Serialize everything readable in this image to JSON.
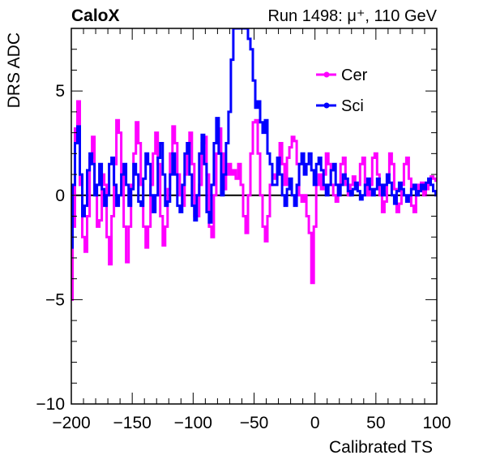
{
  "chart_data": {
    "type": "line",
    "header_left": "CaloX",
    "header_right": "Run 1498:   μ⁺, 110 GeV",
    "xlabel": "Calibrated TS",
    "ylabel": "DRS ADC",
    "xlim": [
      -200,
      100
    ],
    "ylim": [
      -10,
      8
    ],
    "xticks": [
      -200,
      -150,
      -100,
      -50,
      0,
      50,
      100
    ],
    "xtick_labels": [
      "−200",
      "−150",
      "−100",
      "−50",
      "0",
      "50",
      "100"
    ],
    "yticks": [
      -10,
      -5,
      0,
      5
    ],
    "ytick_labels": [
      "−10",
      "−5",
      "0",
      "5"
    ],
    "zero_line": true,
    "legend_position": "top-right",
    "series": [
      {
        "name": "Cer",
        "color": "#ff00ff",
        "points": [
          [
            -200,
            -5.0
          ],
          [
            -198,
            -1.5
          ],
          [
            -196,
            3.2
          ],
          [
            -194,
            4.5
          ],
          [
            -192,
            0.5
          ],
          [
            -190,
            -2.0
          ],
          [
            -188,
            -2.7
          ],
          [
            -186,
            -1.0
          ],
          [
            -184,
            1.8
          ],
          [
            -182,
            2.8
          ],
          [
            -180,
            0.3
          ],
          [
            -178,
            -1.5
          ],
          [
            -176,
            -1.2
          ],
          [
            -174,
            1.0
          ],
          [
            -172,
            0.5
          ],
          [
            -170,
            -2.0
          ],
          [
            -168,
            -3.3
          ],
          [
            -166,
            -1.0
          ],
          [
            -164,
            1.5
          ],
          [
            -162,
            3.6
          ],
          [
            -160,
            3.0
          ],
          [
            -158,
            1.0
          ],
          [
            -156,
            -1.5
          ],
          [
            -154,
            -3.2
          ],
          [
            -152,
            -1.5
          ],
          [
            -150,
            0.5
          ],
          [
            -148,
            2.0
          ],
          [
            -146,
            3.5
          ],
          [
            -144,
            2.5
          ],
          [
            -142,
            0.5
          ],
          [
            -140,
            -1.5
          ],
          [
            -138,
            -2.5
          ],
          [
            -136,
            -1.5
          ],
          [
            -134,
            0.5
          ],
          [
            -132,
            2.0
          ],
          [
            -130,
            3.0
          ],
          [
            -128,
            1.5
          ],
          [
            -126,
            -1.0
          ],
          [
            -124,
            -2.4
          ],
          [
            -122,
            -1.5
          ],
          [
            -120,
            0.3
          ],
          [
            -118,
            2.0
          ],
          [
            -116,
            3.3
          ],
          [
            -114,
            2.5
          ],
          [
            -112,
            1.0
          ],
          [
            -110,
            0.0
          ],
          [
            -108,
            -0.5
          ],
          [
            -106,
            1.0
          ],
          [
            -104,
            2.5
          ],
          [
            -102,
            3.0
          ],
          [
            -100,
            1.5
          ],
          [
            -98,
            -1.0
          ],
          [
            -96,
            -1.0
          ],
          [
            -94,
            0.5
          ],
          [
            -92,
            2.5
          ],
          [
            -90,
            2.8
          ],
          [
            -88,
            1.0
          ],
          [
            -86,
            -1.5
          ],
          [
            -84,
            -2.0
          ],
          [
            -82,
            0.0
          ],
          [
            -80,
            2.0
          ],
          [
            -78,
            3.2
          ],
          [
            -76,
            2.0
          ],
          [
            -74,
            0.3
          ],
          [
            -72,
            1.0
          ],
          [
            -70,
            1.5
          ],
          [
            -68,
            1.0
          ],
          [
            -66,
            1.2
          ],
          [
            -64,
            0.8
          ],
          [
            -62,
            1.5
          ],
          [
            -60,
            0.5
          ],
          [
            -58,
            -1.0
          ],
          [
            -56,
            -1.8
          ],
          [
            -54,
            0.0
          ],
          [
            -52,
            2.0
          ],
          [
            -50,
            3.5
          ],
          [
            -48,
            3.6
          ],
          [
            -46,
            2.0
          ],
          [
            -44,
            0.0
          ],
          [
            -42,
            -1.5
          ],
          [
            -40,
            -2.2
          ],
          [
            -38,
            -1.0
          ],
          [
            -36,
            0.5
          ],
          [
            -34,
            1.0
          ],
          [
            -32,
            0.8
          ],
          [
            -30,
            1.5
          ],
          [
            -28,
            2.5
          ],
          [
            -26,
            1.5
          ],
          [
            -24,
            0.5
          ],
          [
            -22,
            1.8
          ],
          [
            -20,
            2.3
          ],
          [
            -18,
            2.8
          ],
          [
            -16,
            2.6
          ],
          [
            -14,
            1.5
          ],
          [
            -12,
            0.0
          ],
          [
            -10,
            -0.3
          ],
          [
            -8,
            0.0
          ],
          [
            -6,
            -1.0
          ],
          [
            -4,
            -1.8
          ],
          [
            -2,
            -4.2
          ],
          [
            0,
            -1.5
          ],
          [
            2,
            0.5
          ],
          [
            4,
            1.0
          ],
          [
            6,
            0.3
          ],
          [
            8,
            1.0
          ],
          [
            10,
            2.0
          ],
          [
            12,
            1.5
          ],
          [
            14,
            0.5
          ],
          [
            16,
            0.0
          ],
          [
            18,
            -0.3
          ],
          [
            20,
            0.5
          ],
          [
            22,
            1.5
          ],
          [
            24,
            1.8
          ],
          [
            26,
            0.5
          ],
          [
            28,
            0.0
          ],
          [
            30,
            0.5
          ],
          [
            32,
            0.9
          ],
          [
            34,
            0.3
          ],
          [
            36,
            0.5
          ],
          [
            38,
            1.5
          ],
          [
            40,
            1.8
          ],
          [
            42,
            0.5
          ],
          [
            44,
            0.0
          ],
          [
            46,
            0.5
          ],
          [
            48,
            1.8
          ],
          [
            50,
            2.0
          ],
          [
            52,
            1.0
          ],
          [
            54,
            0.0
          ],
          [
            56,
            -0.8
          ],
          [
            58,
            -0.3
          ],
          [
            60,
            1.0
          ],
          [
            62,
            2.0
          ],
          [
            64,
            1.5
          ],
          [
            66,
            0.3
          ],
          [
            68,
            -0.8
          ],
          [
            70,
            -0.4
          ],
          [
            72,
            0.5
          ],
          [
            74,
            1.5
          ],
          [
            76,
            1.8
          ],
          [
            78,
            0.8
          ],
          [
            80,
            -0.5
          ],
          [
            82,
            -0.8
          ],
          [
            84,
            0.0
          ],
          [
            86,
            0.5
          ],
          [
            88,
            0.6
          ],
          [
            90,
            0.0
          ],
          [
            92,
            0.3
          ],
          [
            94,
            0.7
          ],
          [
            96,
            0.9
          ],
          [
            98,
            0.8
          ],
          [
            100,
            0.7
          ]
        ]
      },
      {
        "name": "Sci",
        "color": "#0000ff",
        "points": [
          [
            -200,
            -2.5
          ],
          [
            -198,
            0.5
          ],
          [
            -196,
            2.5
          ],
          [
            -194,
            3.3
          ],
          [
            -192,
            1.0
          ],
          [
            -190,
            -1.0
          ],
          [
            -188,
            -0.5
          ],
          [
            -186,
            1.2
          ],
          [
            -184,
            2.0
          ],
          [
            -182,
            1.5
          ],
          [
            -180,
            0.0
          ],
          [
            -178,
            0.5
          ],
          [
            -176,
            1.5
          ],
          [
            -174,
            0.3
          ],
          [
            -172,
            -0.5
          ],
          [
            -170,
            0.0
          ],
          [
            -168,
            1.5
          ],
          [
            -166,
            1.8
          ],
          [
            -164,
            0.5
          ],
          [
            -162,
            -0.5
          ],
          [
            -160,
            0.0
          ],
          [
            -158,
            1.0
          ],
          [
            -156,
            1.5
          ],
          [
            -154,
            0.5
          ],
          [
            -152,
            -0.5
          ],
          [
            -150,
            0.3
          ],
          [
            -148,
            1.5
          ],
          [
            -146,
            1.0
          ],
          [
            -144,
            -0.3
          ],
          [
            -142,
            -0.5
          ],
          [
            -140,
            0.8
          ],
          [
            -138,
            2.0
          ],
          [
            -136,
            1.5
          ],
          [
            -134,
            0.0
          ],
          [
            -132,
            -0.8
          ],
          [
            -130,
            0.0
          ],
          [
            -128,
            1.8
          ],
          [
            -126,
            2.5
          ],
          [
            -124,
            1.0
          ],
          [
            -122,
            -0.5
          ],
          [
            -120,
            -0.3
          ],
          [
            -118,
            1.0
          ],
          [
            -116,
            2.0
          ],
          [
            -114,
            1.0
          ],
          [
            -112,
            -0.5
          ],
          [
            -110,
            -0.8
          ],
          [
            -108,
            0.5
          ],
          [
            -106,
            2.0
          ],
          [
            -104,
            2.5
          ],
          [
            -102,
            1.0
          ],
          [
            -100,
            -0.5
          ],
          [
            -98,
            -1.2
          ],
          [
            -96,
            0.0
          ],
          [
            -94,
            2.0
          ],
          [
            -92,
            2.9
          ],
          [
            -90,
            1.5
          ],
          [
            -88,
            -0.8
          ],
          [
            -86,
            -1.3
          ],
          [
            -84,
            0.5
          ],
          [
            -82,
            2.5
          ],
          [
            -80,
            3.7
          ],
          [
            -78,
            2.0
          ],
          [
            -76,
            0.0
          ],
          [
            -74,
            1.0
          ],
          [
            -72,
            2.5
          ],
          [
            -70,
            4.0
          ],
          [
            -68,
            6.5
          ],
          [
            -66,
            8.0
          ],
          [
            -64,
            8.0
          ],
          [
            -62,
            8.0
          ],
          [
            -60,
            8.0
          ],
          [
            -58,
            8.0
          ],
          [
            -56,
            8.0
          ],
          [
            -54,
            7.5
          ],
          [
            -52,
            7.0
          ],
          [
            -50,
            5.5
          ],
          [
            -48,
            4.2
          ],
          [
            -46,
            4.5
          ],
          [
            -44,
            3.5
          ],
          [
            -42,
            3.0
          ],
          [
            -40,
            3.6
          ],
          [
            -38,
            2.0
          ],
          [
            -36,
            1.5
          ],
          [
            -34,
            0.5
          ],
          [
            -32,
            0.5
          ],
          [
            -30,
            1.8
          ],
          [
            -28,
            1.0
          ],
          [
            -26,
            0.0
          ],
          [
            -24,
            -0.5
          ],
          [
            -22,
            0.3
          ],
          [
            -20,
            0.8
          ],
          [
            -18,
            0.0
          ],
          [
            -16,
            -0.5
          ],
          [
            -14,
            0.5
          ],
          [
            -12,
            1.5
          ],
          [
            -10,
            2.0
          ],
          [
            -8,
            1.0
          ],
          [
            -6,
            1.5
          ],
          [
            -4,
            2.0
          ],
          [
            -2,
            1.2
          ],
          [
            0,
            0.5
          ],
          [
            2,
            1.5
          ],
          [
            4,
            1.8
          ],
          [
            6,
            1.2
          ],
          [
            8,
            0.5
          ],
          [
            10,
            0.0
          ],
          [
            12,
            0.5
          ],
          [
            14,
            1.2
          ],
          [
            16,
            1.5
          ],
          [
            18,
            0.5
          ],
          [
            20,
            0.0
          ],
          [
            22,
            0.5
          ],
          [
            24,
            1.0
          ],
          [
            26,
            0.8
          ],
          [
            28,
            0.2
          ],
          [
            30,
            0.0
          ],
          [
            32,
            0.3
          ],
          [
            34,
            0.6
          ],
          [
            36,
            0.2
          ],
          [
            38,
            -0.2
          ],
          [
            40,
            0.0
          ],
          [
            42,
            0.5
          ],
          [
            44,
            0.8
          ],
          [
            46,
            0.3
          ],
          [
            48,
            0.0
          ],
          [
            50,
            0.3
          ],
          [
            52,
            0.8
          ],
          [
            54,
            0.5
          ],
          [
            56,
            0.0
          ],
          [
            58,
            0.5
          ],
          [
            60,
            1.0
          ],
          [
            62,
            0.6
          ],
          [
            64,
            0.0
          ],
          [
            66,
            -0.4
          ],
          [
            68,
            0.2
          ],
          [
            70,
            0.6
          ],
          [
            72,
            0.3
          ],
          [
            74,
            0.0
          ],
          [
            76,
            -0.3
          ],
          [
            78,
            0.0
          ],
          [
            80,
            0.3
          ],
          [
            82,
            0.5
          ],
          [
            84,
            0.0
          ],
          [
            86,
            0.2
          ],
          [
            88,
            0.5
          ],
          [
            90,
            0.3
          ],
          [
            92,
            0.6
          ],
          [
            94,
            0.8
          ],
          [
            96,
            0.5
          ],
          [
            98,
            0.2
          ],
          [
            100,
            0.0
          ]
        ]
      }
    ]
  }
}
